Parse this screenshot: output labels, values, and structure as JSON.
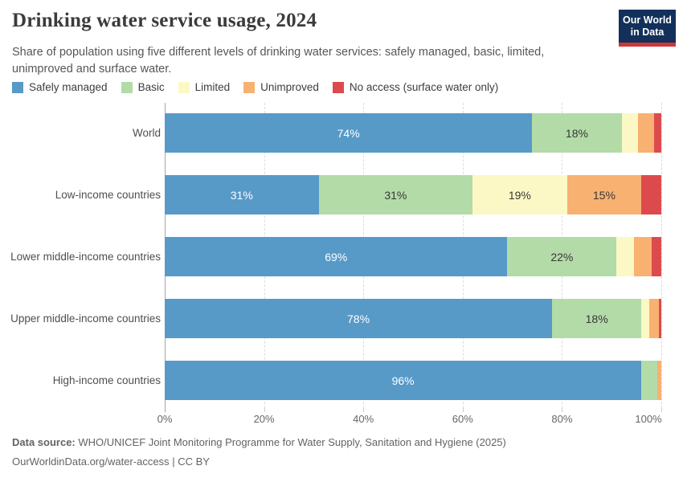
{
  "header": {
    "title": "Drinking water service usage, 2024",
    "subtitle": "Share of population using five different levels of drinking water services: safely managed, basic, limited, unimproved and surface water.",
    "logo": {
      "line1": "Our World",
      "line2": "in Data",
      "navy": "#12305a",
      "red": "#cf3639"
    }
  },
  "chart_data": {
    "type": "bar",
    "orientation": "horizontal",
    "stacked": true,
    "title": "Drinking water service usage, 2024",
    "categories": [
      "World",
      "Low-income countries",
      "Lower middle-income countries",
      "Upper middle-income countries",
      "High-income countries"
    ],
    "series": [
      {
        "name": "Safely managed",
        "color": "#579ac8",
        "label_color": "#ffffff",
        "values": [
          74,
          31,
          69,
          78,
          96
        ],
        "value_labels": [
          "74%",
          "31%",
          "69%",
          "78%",
          "96%"
        ]
      },
      {
        "name": "Basic",
        "color": "#b3dba8",
        "label_color": "#373737",
        "values": [
          18,
          31,
          22,
          18,
          3.2
        ],
        "value_labels": [
          "18%",
          "31%",
          "22%",
          "18%",
          ""
        ]
      },
      {
        "name": "Limited",
        "color": "#fbf8c5",
        "label_color": "#373737",
        "values": [
          3.3,
          19,
          3.5,
          1.5,
          0
        ],
        "value_labels": [
          "",
          "19%",
          "",
          "",
          ""
        ]
      },
      {
        "name": "Unimproved",
        "color": "#f8b171",
        "label_color": "#373737",
        "values": [
          3.2,
          15,
          3.5,
          2,
          0.8
        ],
        "value_labels": [
          "",
          "15%",
          "",
          "",
          ""
        ]
      },
      {
        "name": "No access (surface water only)",
        "color": "#dd4a4e",
        "label_color": "#373737",
        "values": [
          1.5,
          4,
          2,
          0.5,
          0
        ],
        "value_labels": [
          "",
          "",
          "",
          "",
          ""
        ]
      }
    ],
    "x_ticks": [
      "0%",
      "20%",
      "40%",
      "60%",
      "80%",
      "100%"
    ],
    "xlim": [
      0,
      100
    ],
    "grid": "vertical-dashed",
    "legend_position": "top"
  },
  "footer": {
    "source_label": "Data source:",
    "source_text": "WHO/UNICEF Joint Monitoring Programme for Water Supply, Sanitation and Hygiene (2025)",
    "url": "OurWorldinData.org/water-access",
    "separator": "|",
    "license": "CC BY"
  }
}
